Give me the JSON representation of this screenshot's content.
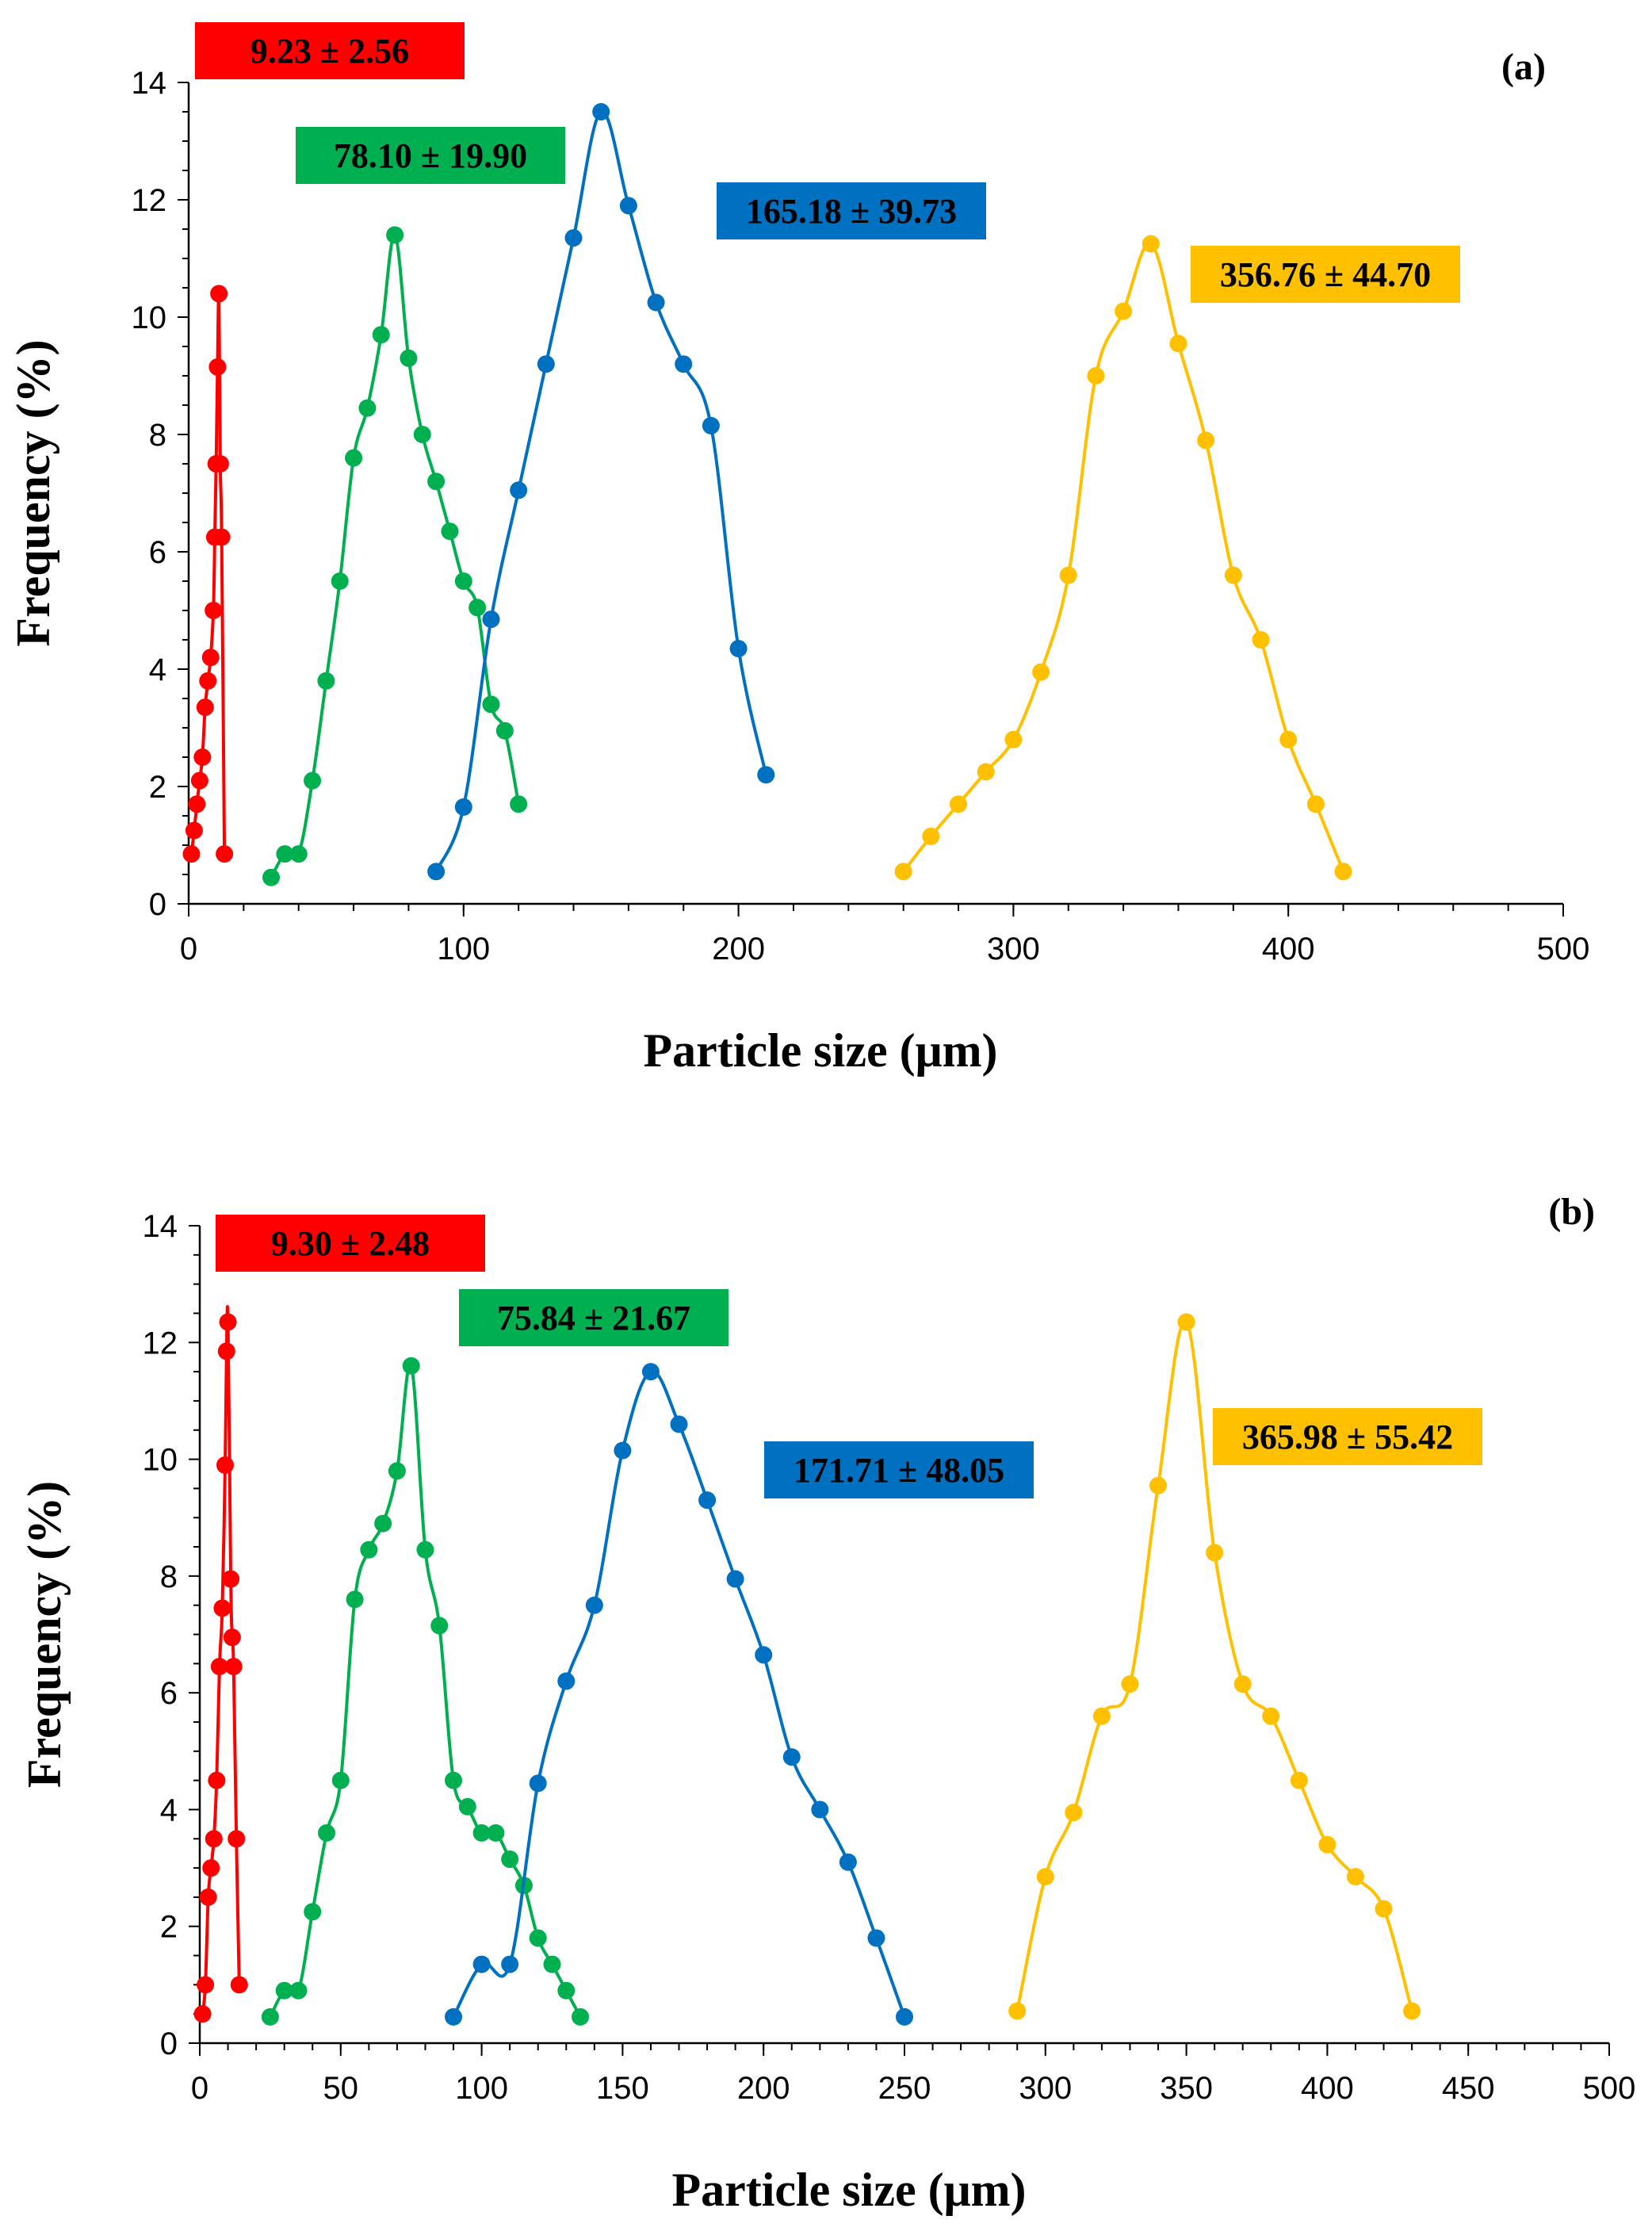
{
  "chart_data": [
    {
      "type": "line",
      "panel": "(a)",
      "xlabel": "Particle size (μm)",
      "ylabel": "Frequency (%)",
      "xlim": [
        0,
        500
      ],
      "ylim": [
        0,
        14
      ],
      "xticks": [
        0,
        100,
        200,
        300,
        400,
        500
      ],
      "yticks": [
        0,
        2,
        4,
        6,
        8,
        10,
        12,
        14
      ],
      "series": [
        {
          "name": "red",
          "color": "#ff0000",
          "label": "9.23 ± 2.56",
          "x": [
            1,
            2,
            3,
            4,
            5,
            6,
            7,
            8,
            9,
            9.5,
            10,
            10.5,
            11,
            11.5,
            12,
            13
          ],
          "y": [
            0.85,
            1.25,
            1.7,
            2.1,
            2.5,
            3.35,
            3.8,
            4.2,
            5.0,
            6.25,
            7.5,
            9.15,
            10.4,
            7.5,
            6.25,
            0.85
          ]
        },
        {
          "name": "green",
          "color": "#00b050",
          "label": "78.10 ± 19.90",
          "x": [
            30,
            35,
            40,
            45,
            50,
            55,
            60,
            65,
            70,
            75,
            80,
            85,
            90,
            95,
            100,
            105,
            110,
            115,
            120
          ],
          "y": [
            0.45,
            0.85,
            0.85,
            2.1,
            3.8,
            5.5,
            7.6,
            8.45,
            9.7,
            11.4,
            9.3,
            8.0,
            7.2,
            6.35,
            5.5,
            5.05,
            3.4,
            2.95,
            1.7
          ]
        },
        {
          "name": "blue",
          "color": "#0070c0",
          "label": "165.18 ± 39.73",
          "x": [
            90,
            100,
            110,
            120,
            130,
            140,
            150,
            160,
            170,
            180,
            190,
            200,
            210
          ],
          "y": [
            0.55,
            1.65,
            4.85,
            7.05,
            9.2,
            11.35,
            13.5,
            11.9,
            10.25,
            9.2,
            8.15,
            4.35,
            2.2
          ]
        },
        {
          "name": "yellow",
          "color": "#ffc000",
          "label": "356.76 ± 44.70",
          "x": [
            260,
            270,
            280,
            290,
            300,
            310,
            320,
            330,
            340,
            350,
            360,
            370,
            380,
            390,
            400,
            410,
            420
          ],
          "y": [
            0.55,
            1.15,
            1.7,
            2.25,
            2.8,
            3.95,
            5.6,
            9.0,
            10.1,
            11.25,
            9.55,
            7.9,
            5.6,
            4.5,
            2.8,
            1.7,
            0.55
          ]
        }
      ]
    },
    {
      "type": "line",
      "panel": "(b)",
      "xlabel": "Particle size (μm)",
      "ylabel": "Frequency (%)",
      "xlim": [
        0,
        500
      ],
      "ylim": [
        0,
        14
      ],
      "xticks": [
        0,
        50,
        100,
        150,
        200,
        250,
        300,
        350,
        400,
        450,
        500
      ],
      "yticks": [
        0,
        2,
        4,
        6,
        8,
        10,
        12,
        14
      ],
      "series": [
        {
          "name": "red",
          "color": "#ff0000",
          "label": "9.30 ± 2.48",
          "x": [
            1,
            2,
            3,
            4,
            5,
            6,
            7,
            8,
            9,
            9.5,
            10,
            11,
            11.5,
            12,
            13,
            14
          ],
          "y": [
            0.5,
            1.0,
            2.5,
            3.0,
            3.5,
            4.5,
            6.45,
            7.45,
            9.9,
            11.85,
            12.35,
            7.95,
            6.95,
            6.45,
            3.5,
            1.0
          ]
        },
        {
          "name": "green",
          "color": "#00b050",
          "label": "75.84 ± 21.67",
          "x": [
            25,
            30,
            35,
            40,
            45,
            50,
            55,
            60,
            65,
            70,
            75,
            80,
            85,
            90,
            95,
            100,
            105,
            110,
            115,
            120,
            125,
            130,
            135
          ],
          "y": [
            0.45,
            0.9,
            0.9,
            2.25,
            3.6,
            4.5,
            7.6,
            8.45,
            8.9,
            9.8,
            11.6,
            8.45,
            7.15,
            4.5,
            4.05,
            3.6,
            3.6,
            3.15,
            2.7,
            1.8,
            1.35,
            0.9,
            0.45
          ]
        },
        {
          "name": "blue",
          "color": "#0070c0",
          "label": "171.71 ± 48.05",
          "x": [
            90,
            100,
            110,
            120,
            130,
            140,
            150,
            160,
            170,
            180,
            190,
            200,
            210,
            220,
            230,
            240,
            250
          ],
          "y": [
            0.45,
            1.35,
            1.35,
            4.45,
            6.2,
            7.5,
            10.15,
            11.5,
            10.6,
            9.3,
            7.95,
            6.65,
            4.9,
            4.0,
            3.1,
            1.8,
            0.45
          ]
        },
        {
          "name": "yellow",
          "color": "#ffc000",
          "label": "365.98 ± 55.42",
          "x": [
            290,
            300,
            310,
            320,
            330,
            340,
            350,
            360,
            370,
            380,
            390,
            400,
            410,
            420,
            430
          ],
          "y": [
            0.55,
            2.85,
            3.95,
            5.6,
            6.15,
            9.55,
            12.35,
            8.4,
            6.15,
            5.6,
            4.5,
            3.4,
            2.85,
            2.3,
            0.55
          ]
        }
      ]
    }
  ]
}
